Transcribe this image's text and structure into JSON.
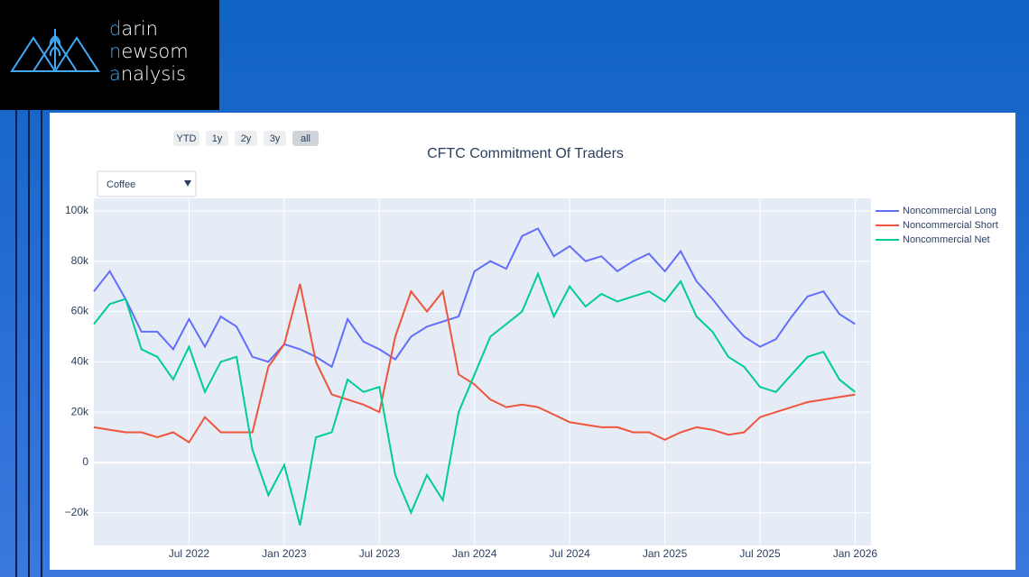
{
  "logo": {
    "lines": [
      "darin",
      "newsom",
      "analysis"
    ]
  },
  "range_buttons": [
    "YTD",
    "1y",
    "2y",
    "3y",
    "all"
  ],
  "dropdown": {
    "selected": "Coffee"
  },
  "chart_data": {
    "type": "line",
    "title": "CFTC Commitment Of Traders",
    "x": [
      "2022-01",
      "2022-02",
      "2022-03",
      "2022-04",
      "2022-05",
      "2022-06",
      "2022-07",
      "2022-08",
      "2022-09",
      "2022-10",
      "2022-11",
      "2022-12",
      "2023-01",
      "2023-02",
      "2023-03",
      "2023-04",
      "2023-05",
      "2023-06",
      "2023-07",
      "2023-08",
      "2023-09",
      "2023-10",
      "2023-11",
      "2023-12",
      "2024-01",
      "2024-02",
      "2024-03",
      "2024-04",
      "2024-05",
      "2024-06",
      "2024-07",
      "2024-08",
      "2024-09",
      "2024-10",
      "2024-11",
      "2024-12",
      "2025-01",
      "2025-02",
      "2025-03",
      "2025-04",
      "2025-05",
      "2025-06",
      "2025-07",
      "2025-08",
      "2025-09",
      "2025-10",
      "2025-11",
      "2025-12",
      "2026-01"
    ],
    "series": [
      {
        "name": "Noncommercial Long",
        "color": "#636efa",
        "values": [
          68000,
          76000,
          65000,
          52000,
          52000,
          45000,
          57000,
          46000,
          58000,
          54000,
          42000,
          40000,
          47000,
          45000,
          42000,
          38000,
          57000,
          48000,
          45000,
          41000,
          50000,
          54000,
          56000,
          58000,
          76000,
          80000,
          77000,
          90000,
          93000,
          82000,
          86000,
          80000,
          82000,
          76000,
          80000,
          83000,
          76000,
          84000,
          72000,
          65000,
          57000,
          50000,
          46000,
          49000,
          58000,
          66000,
          68000,
          59000,
          55000
        ]
      },
      {
        "name": "Noncommercial Short",
        "color": "#ef553b",
        "values": [
          14000,
          13000,
          12000,
          12000,
          10000,
          12000,
          8000,
          18000,
          12000,
          12000,
          12000,
          38000,
          47000,
          71000,
          40000,
          27000,
          25000,
          23000,
          20000,
          50000,
          68000,
          60000,
          68000,
          35000,
          31000,
          25000,
          22000,
          23000,
          22000,
          19000,
          16000,
          15000,
          14000,
          14000,
          12000,
          12000,
          9000,
          12000,
          14000,
          13000,
          11000,
          12000,
          18000,
          20000,
          22000,
          24000,
          25000,
          26000,
          27000
        ]
      },
      {
        "name": "Noncommercial Net",
        "color": "#00cc96",
        "values": [
          55000,
          63000,
          65000,
          45000,
          42000,
          33000,
          46000,
          28000,
          40000,
          42000,
          5000,
          -13000,
          -1000,
          -25000,
          10000,
          12000,
          33000,
          28000,
          30000,
          -5000,
          -20000,
          -5000,
          -15000,
          20000,
          35000,
          50000,
          55000,
          60000,
          75000,
          58000,
          70000,
          62000,
          67000,
          64000,
          66000,
          68000,
          64000,
          72000,
          58000,
          52000,
          42000,
          38000,
          30000,
          28000,
          35000,
          42000,
          44000,
          33000,
          28000
        ]
      }
    ],
    "xlim": [
      "2022-01",
      "2026-02"
    ],
    "xticks": [
      {
        "value": "2022-07",
        "label": "Jul 2022"
      },
      {
        "value": "2023-01",
        "label": "Jan 2023"
      },
      {
        "value": "2023-07",
        "label": "Jul 2023"
      },
      {
        "value": "2024-01",
        "label": "Jan 2024"
      },
      {
        "value": "2024-07",
        "label": "Jul 2024"
      },
      {
        "value": "2025-01",
        "label": "Jan 2025"
      },
      {
        "value": "2025-07",
        "label": "Jul 2025"
      },
      {
        "value": "2026-01",
        "label": "Jan 2026"
      }
    ],
    "ylim": [
      -33000,
      105000
    ],
    "yticks": [
      {
        "value": -20000,
        "label": "−20k"
      },
      0,
      {
        "value": 20000,
        "label": "20k"
      },
      {
        "value": 40000,
        "label": "40k"
      },
      {
        "value": 60000,
        "label": "60k"
      },
      {
        "value": 80000,
        "label": "80k"
      },
      {
        "value": 100000,
        "label": "100k"
      }
    ],
    "grid": true,
    "legend": "right"
  }
}
